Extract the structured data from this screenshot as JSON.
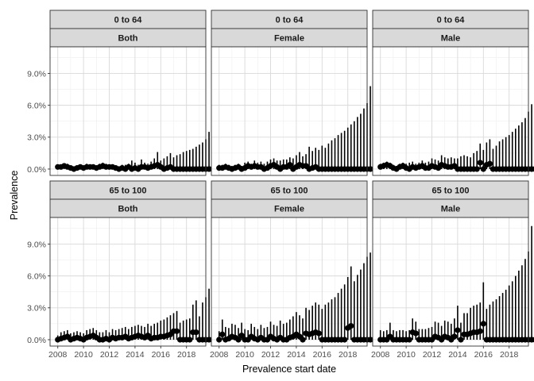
{
  "chart_data": {
    "type": "scatter",
    "style": "facet-grid points with vertical error bars, theme_bw",
    "xlabel": "Prevalence start date",
    "ylabel": "Prevalence",
    "x_ticks": [
      "2008",
      "2010",
      "2012",
      "2014",
      "2016",
      "2018"
    ],
    "y_ticks": [
      "0.0%",
      "3.0%",
      "6.0%",
      "9.0%"
    ],
    "xlim": [
      2007.4,
      2019.5
    ],
    "ylim": [
      -0.6,
      11.5
    ],
    "y_unit": "%",
    "grid": true,
    "colors": {
      "strip_fill": "#d9d9d9",
      "strip_border": "#333333",
      "grid_major": "#d9d9d9",
      "grid_minor": "#eeeeee",
      "panel_border": "#333333",
      "points": "#000000"
    },
    "panels": [
      {
        "age_group": "0 to 64",
        "sex": "Both",
        "values": [
          0.2,
          0.2,
          0.3,
          0.2,
          0.1,
          0.0,
          0.1,
          0.2,
          0.1,
          0.2,
          0.2,
          0.2,
          0.1,
          0.2,
          0.3,
          0.2,
          0.2,
          0.2,
          0.1,
          0.0,
          0.1,
          0.0,
          0.2,
          0.0,
          0.1,
          0.0,
          0.2,
          0.2,
          0.1,
          0.2,
          0.3,
          0.4,
          0.2,
          0.0,
          0.1,
          0.2,
          0.0,
          0.0,
          0.0,
          0.0,
          0.0,
          0.0,
          0.0,
          0.0,
          0.0,
          0.0,
          0.0,
          0.0,
          0.0
        ],
        "upper": [
          0.4,
          0.4,
          0.5,
          0.5,
          0.3,
          0.2,
          0.3,
          0.4,
          0.3,
          0.5,
          0.4,
          0.4,
          0.3,
          0.5,
          0.6,
          0.5,
          0.4,
          0.4,
          0.3,
          0.2,
          0.4,
          0.4,
          0.5,
          0.8,
          0.6,
          0.4,
          0.9,
          0.6,
          0.5,
          0.7,
          1.0,
          1.6,
          0.8,
          1.0,
          1.2,
          1.5,
          1.1,
          1.3,
          1.4,
          1.6,
          1.7,
          1.8,
          1.9,
          2.1,
          2.3,
          2.5,
          2.8,
          3.5,
          3.5
        ]
      },
      {
        "age_group": "0 to 64",
        "sex": "Female",
        "values": [
          0.1,
          0.1,
          0.2,
          0.1,
          0.0,
          0.1,
          0.2,
          0.0,
          0.1,
          0.3,
          0.2,
          0.3,
          0.2,
          0.2,
          0.0,
          0.1,
          0.3,
          0.4,
          0.2,
          0.0,
          0.2,
          0.2,
          0.4,
          0.0,
          0.2,
          0.4,
          0.3,
          0.3,
          0.0,
          0.1,
          0.2,
          0.0,
          0.0,
          0.0,
          0.0,
          0.0,
          0.0,
          0.0,
          0.0,
          0.0,
          0.0,
          0.0,
          0.0,
          0.0,
          0.0,
          0.0,
          0.0,
          0.0,
          0.0
        ],
        "upper": [
          0.4,
          0.4,
          0.5,
          0.4,
          0.3,
          0.4,
          0.5,
          0.3,
          0.6,
          0.7,
          0.5,
          0.8,
          0.6,
          0.7,
          0.5,
          0.7,
          0.9,
          1.0,
          0.8,
          0.8,
          0.9,
          0.9,
          1.1,
          1.0,
          1.3,
          1.6,
          1.2,
          1.4,
          2.1,
          1.7,
          2.0,
          1.8,
          2.2,
          2.0,
          2.4,
          2.7,
          2.9,
          3.2,
          3.4,
          3.6,
          3.9,
          4.2,
          4.5,
          4.9,
          5.2,
          5.7,
          6.2,
          7.8,
          7.8
        ]
      },
      {
        "age_group": "0 to 64",
        "sex": "Male",
        "values": [
          0.2,
          0.3,
          0.4,
          0.3,
          0.1,
          0.0,
          0.2,
          0.3,
          0.1,
          0.0,
          0.2,
          0.1,
          0.2,
          0.3,
          0.1,
          0.1,
          0.3,
          0.2,
          0.1,
          0.4,
          0.3,
          0.2,
          0.2,
          0.3,
          0.0,
          0.0,
          0.0,
          0.0,
          0.0,
          0.0,
          0.0,
          0.6,
          0.0,
          0.4,
          0.5,
          0.0,
          0.0,
          0.0,
          0.0,
          0.0,
          0.0,
          0.0,
          0.0,
          0.0,
          0.0,
          0.0,
          0.0,
          0.0,
          0.0
        ],
        "upper": [
          0.5,
          0.6,
          0.7,
          0.6,
          0.4,
          0.3,
          0.5,
          0.6,
          0.5,
          0.6,
          0.7,
          0.5,
          0.6,
          0.8,
          0.6,
          0.7,
          1.0,
          0.9,
          0.8,
          1.3,
          1.1,
          1.0,
          1.1,
          1.0,
          1.0,
          1.2,
          1.3,
          1.2,
          1.1,
          1.5,
          1.7,
          2.4,
          1.8,
          2.5,
          2.8,
          1.9,
          2.2,
          2.6,
          2.8,
          3.0,
          3.2,
          3.5,
          3.8,
          4.1,
          4.4,
          4.8,
          5.4,
          6.1,
          6.1
        ]
      },
      {
        "age_group": "65 to 100",
        "sex": "Both",
        "values": [
          0.0,
          0.1,
          0.2,
          0.3,
          0.0,
          0.1,
          0.2,
          0.1,
          0.0,
          0.2,
          0.3,
          0.4,
          0.2,
          0.0,
          0.0,
          0.1,
          0.0,
          0.2,
          0.1,
          0.2,
          0.2,
          0.3,
          0.1,
          0.2,
          0.3,
          0.4,
          0.3,
          0.2,
          0.4,
          0.1,
          0.2,
          0.2,
          0.3,
          0.3,
          0.4,
          0.5,
          0.8,
          0.8,
          0.0,
          0.0,
          0.0,
          0.0,
          0.7,
          0.7,
          0.0,
          0.0,
          0.0,
          0.0,
          0.0
        ],
        "upper": [
          0.4,
          0.7,
          0.8,
          0.9,
          0.6,
          0.7,
          0.8,
          0.7,
          0.6,
          0.9,
          1.0,
          1.1,
          0.9,
          0.7,
          0.7,
          0.9,
          0.7,
          1.0,
          0.9,
          1.0,
          1.1,
          1.2,
          1.0,
          1.2,
          1.3,
          1.4,
          1.3,
          1.2,
          1.5,
          1.3,
          1.5,
          1.6,
          1.8,
          1.9,
          2.1,
          2.3,
          2.5,
          2.7,
          1.6,
          1.8,
          1.9,
          2.0,
          3.3,
          3.7,
          2.2,
          3.5,
          4.0,
          4.8,
          4.8
        ]
      },
      {
        "age_group": "65 to 100",
        "sex": "Female",
        "values": [
          0.0,
          0.5,
          0.0,
          0.1,
          0.3,
          0.2,
          0.0,
          0.4,
          0.0,
          0.0,
          0.3,
          0.1,
          0.0,
          0.2,
          0.0,
          0.0,
          0.3,
          0.1,
          0.0,
          0.2,
          0.0,
          0.0,
          0.2,
          0.3,
          0.5,
          0.3,
          0.0,
          0.6,
          0.5,
          0.6,
          0.7,
          0.6,
          0.0,
          0.0,
          0.0,
          0.0,
          0.0,
          0.0,
          0.0,
          0.0,
          1.1,
          1.3,
          0.0,
          0.0,
          0.0,
          0.0,
          0.0,
          0.0,
          0.0
        ],
        "upper": [
          0.8,
          1.9,
          1.2,
          1.1,
          1.5,
          1.4,
          1.1,
          1.6,
          1.0,
          0.9,
          1.5,
          1.2,
          1.0,
          1.4,
          1.1,
          1.2,
          1.7,
          1.4,
          1.3,
          1.8,
          1.5,
          1.6,
          1.9,
          2.2,
          2.6,
          2.3,
          2.0,
          3.0,
          2.8,
          3.2,
          3.5,
          3.3,
          2.9,
          3.3,
          3.5,
          3.8,
          4.0,
          4.4,
          4.8,
          5.2,
          5.9,
          6.9,
          5.5,
          6.1,
          6.6,
          7.2,
          7.8,
          8.2,
          8.2
        ]
      },
      {
        "age_group": "65 to 100",
        "sex": "Male",
        "values": [
          0.0,
          0.0,
          0.0,
          0.3,
          0.0,
          0.0,
          0.0,
          0.0,
          0.0,
          0.0,
          0.7,
          0.6,
          0.0,
          0.0,
          0.0,
          0.0,
          0.0,
          0.3,
          0.2,
          0.0,
          0.3,
          0.2,
          0.0,
          0.3,
          0.9,
          0.0,
          0.5,
          0.5,
          0.6,
          0.7,
          0.7,
          0.8,
          1.5,
          0.0,
          0.0,
          0.0,
          0.0,
          0.0,
          0.0,
          0.0,
          0.0,
          0.0,
          0.0,
          0.0,
          0.0,
          0.0,
          0.0,
          0.0,
          0.0
        ],
        "upper": [
          0.9,
          0.8,
          0.9,
          1.6,
          0.9,
          0.8,
          0.9,
          0.9,
          0.8,
          0.9,
          2.0,
          1.7,
          1.0,
          1.0,
          1.0,
          1.1,
          1.2,
          1.7,
          1.6,
          1.3,
          1.8,
          1.7,
          1.5,
          2.0,
          3.2,
          1.6,
          2.5,
          2.5,
          3.0,
          3.2,
          3.3,
          3.5,
          5.4,
          2.9,
          3.3,
          3.6,
          3.8,
          4.1,
          4.4,
          4.7,
          5.1,
          5.5,
          6.0,
          6.5,
          7.0,
          7.6,
          8.3,
          10.7,
          10.7
        ]
      }
    ]
  }
}
